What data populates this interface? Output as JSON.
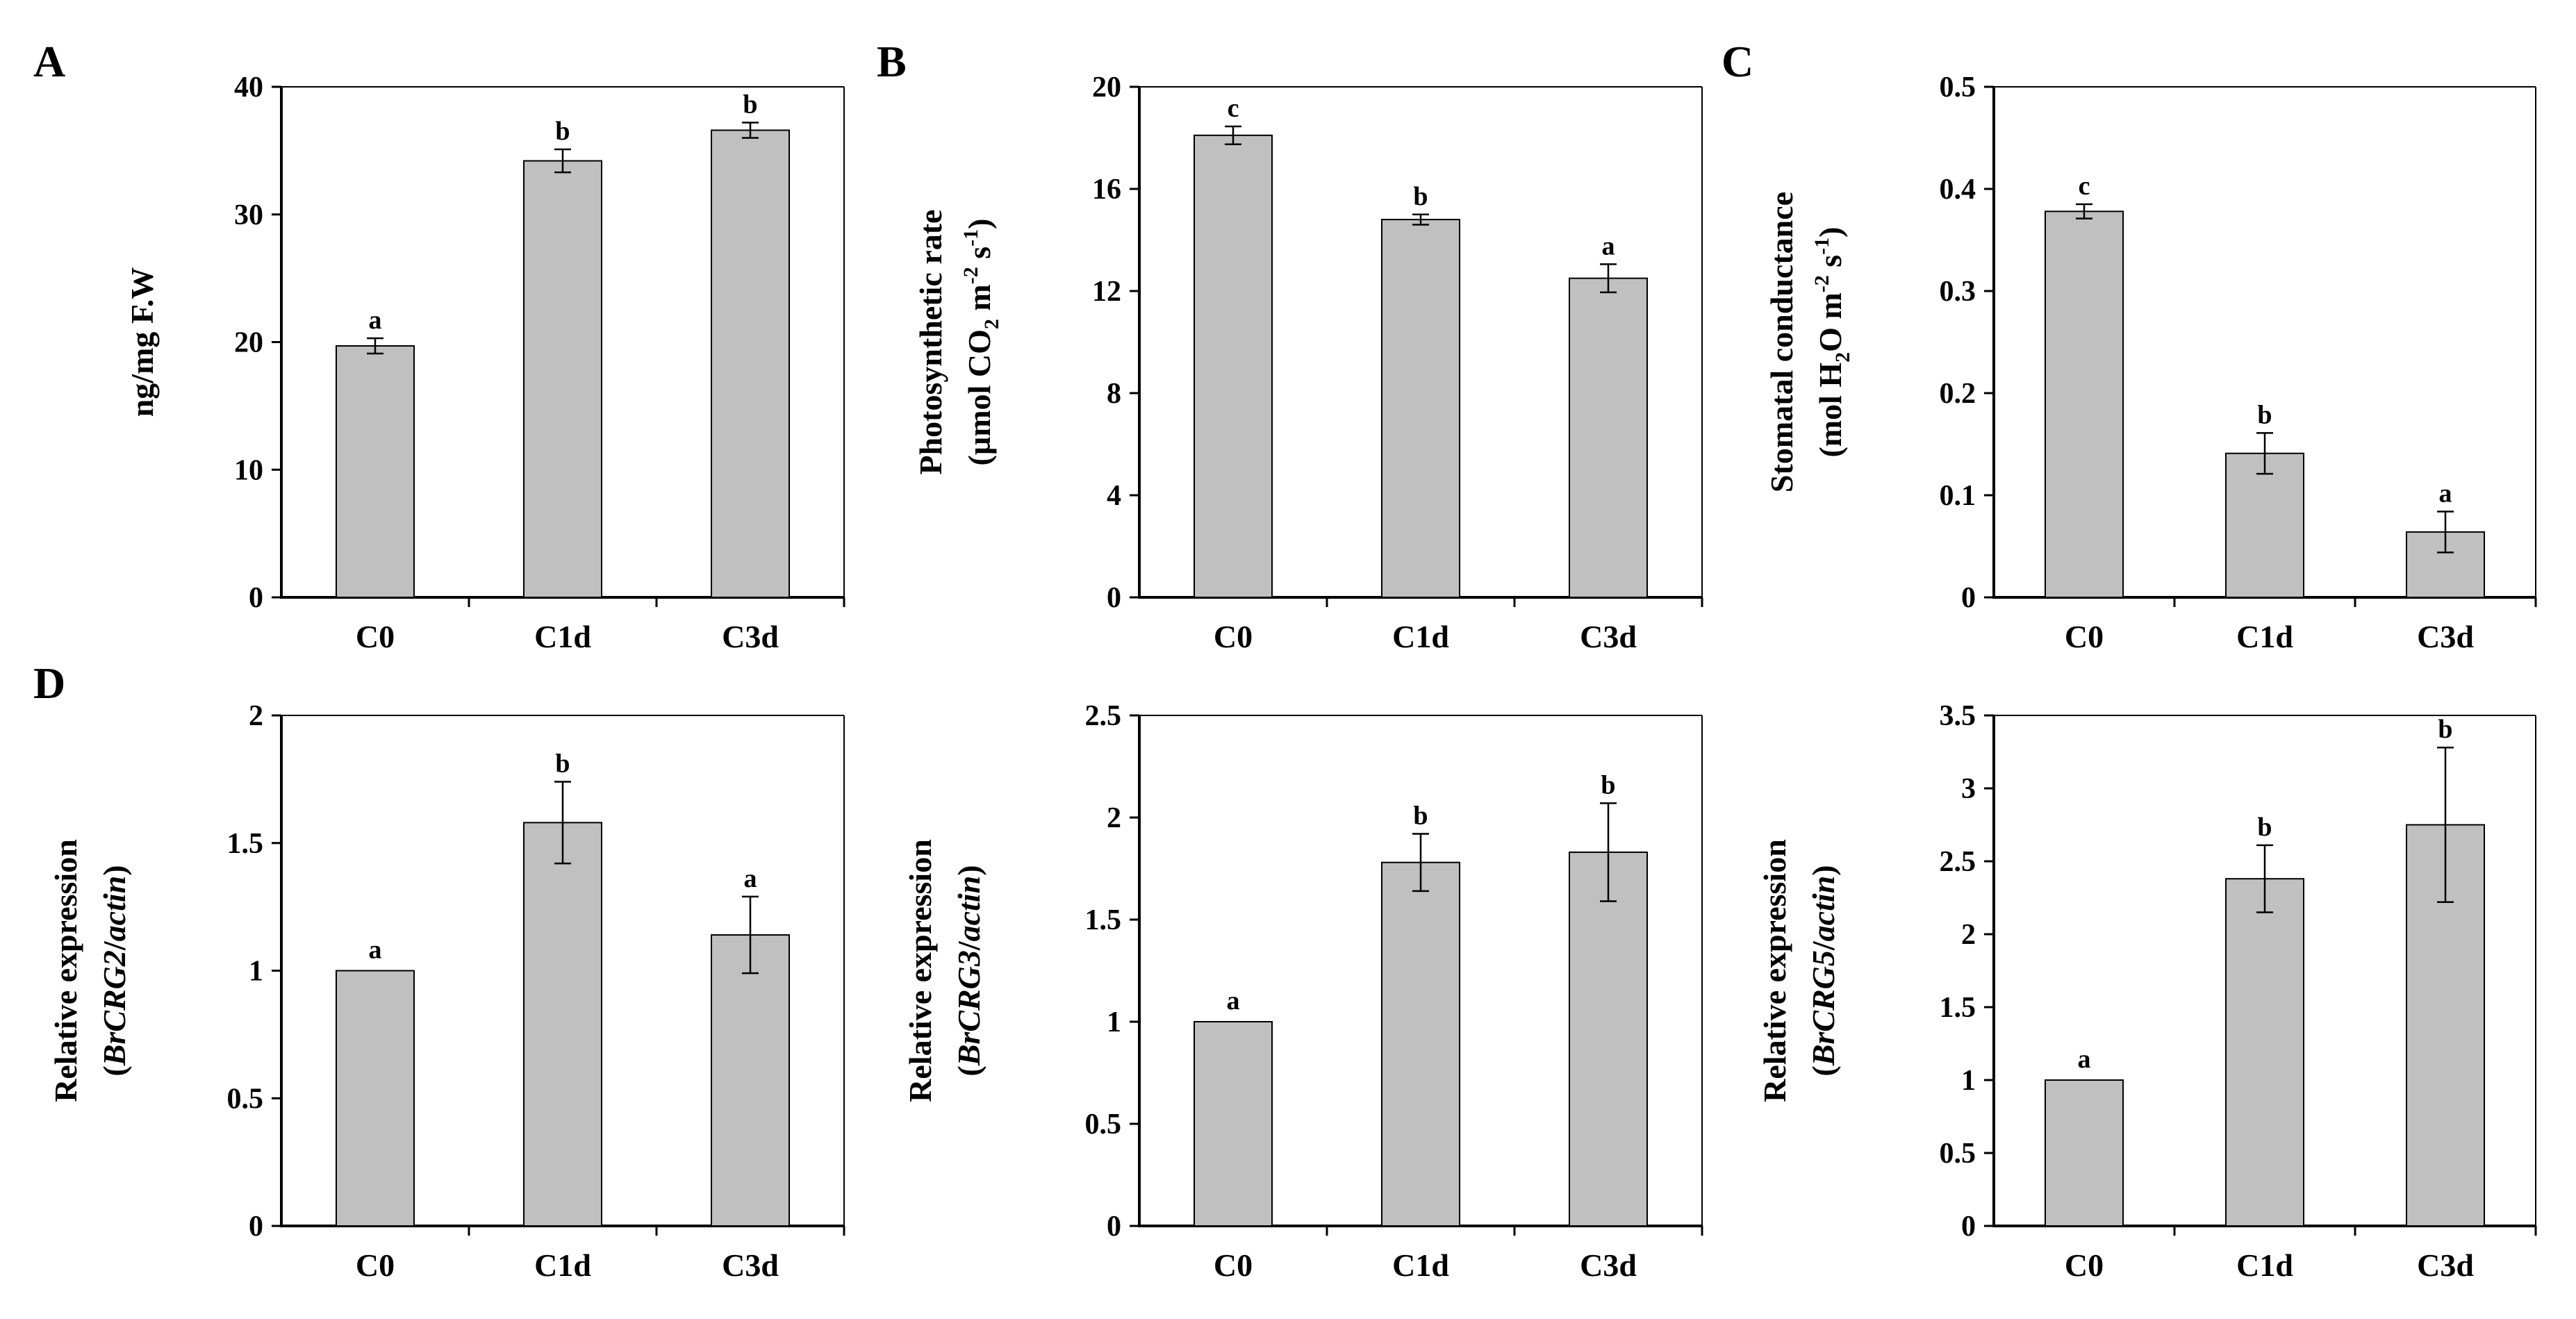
{
  "figure": {
    "style": {
      "bar_color": "#c0c0c0",
      "bar_edge_color": "#000000",
      "axis_color": "#000000",
      "background": "#ffffff"
    }
  },
  "chart_data": [
    {
      "panel": "A",
      "panel_label": "A",
      "type": "bar",
      "title": "",
      "ylabel_lines": [
        [
          {
            "t": "ng/mg F.W"
          }
        ]
      ],
      "xlabel": "",
      "categories": [
        "C0",
        "C1d",
        "C3d"
      ],
      "values": [
        19.7,
        34.2,
        36.6
      ],
      "errors": [
        0.6,
        0.9,
        0.6
      ],
      "significance": [
        "a",
        "b",
        "b"
      ],
      "ylim": [
        0,
        40
      ],
      "yticks": [
        0,
        10,
        20,
        30,
        40
      ],
      "ytick_labels": [
        "0",
        "10",
        "20",
        "30",
        "40"
      ]
    },
    {
      "panel": "B",
      "panel_label": "B",
      "type": "bar",
      "title": "",
      "ylabel_lines": [
        [
          {
            "t": "Photosynthetic rate"
          }
        ],
        [
          {
            "t": "(µmol CO"
          },
          {
            "t": "2",
            "sub": true
          },
          {
            "t": " m"
          },
          {
            "t": "-2",
            "sup": true
          },
          {
            "t": " s"
          },
          {
            "t": "-1",
            "sup": true
          },
          {
            "t": ")"
          }
        ]
      ],
      "xlabel": "",
      "categories": [
        "C0",
        "C1d",
        "C3d"
      ],
      "values": [
        18.1,
        14.8,
        12.5
      ],
      "errors": [
        0.35,
        0.2,
        0.55
      ],
      "significance": [
        "c",
        "b",
        "a"
      ],
      "ylim": [
        0,
        20
      ],
      "yticks": [
        0,
        4,
        8,
        12,
        16,
        20
      ],
      "ytick_labels": [
        "0",
        "4",
        "8",
        "12",
        "16",
        "20"
      ]
    },
    {
      "panel": "C",
      "panel_label": "C",
      "type": "bar",
      "title": "",
      "ylabel_lines": [
        [
          {
            "t": "Stomatal conductance"
          }
        ],
        [
          {
            "t": "(mol H"
          },
          {
            "t": "2",
            "sub": true
          },
          {
            "t": "O m"
          },
          {
            "t": "-2",
            "sup": true
          },
          {
            "t": " s"
          },
          {
            "t": "-1",
            "sup": true
          },
          {
            "t": ")"
          }
        ]
      ],
      "xlabel": "",
      "categories": [
        "C0",
        "C1d",
        "C3d"
      ],
      "values": [
        0.378,
        0.141,
        0.064
      ],
      "errors": [
        0.007,
        0.02,
        0.02
      ],
      "significance": [
        "c",
        "b",
        "a"
      ],
      "ylim": [
        0,
        0.5
      ],
      "yticks": [
        0,
        0.1,
        0.2,
        0.3,
        0.4,
        0.5
      ],
      "ytick_labels": [
        "0",
        "0.1",
        "0.2",
        "0.3",
        "0.4",
        "0.5"
      ]
    },
    {
      "panel": "D1",
      "panel_label": "D",
      "type": "bar",
      "title": "",
      "ylabel_lines": [
        [
          {
            "t": "Relative expression"
          }
        ],
        [
          {
            "t": "("
          },
          {
            "t": "BrCRG2",
            "it": true
          },
          {
            "t": "/"
          },
          {
            "t": "actin",
            "it": true
          },
          {
            "t": ")"
          }
        ]
      ],
      "xlabel": "",
      "categories": [
        "C0",
        "C1d",
        "C3d"
      ],
      "values": [
        1.0,
        1.58,
        1.14
      ],
      "errors": [
        0.0,
        0.16,
        0.15
      ],
      "significance": [
        "a",
        "b",
        "a"
      ],
      "ylim": [
        0,
        2
      ],
      "yticks": [
        0,
        0.5,
        1,
        1.5,
        2
      ],
      "ytick_labels": [
        "0",
        "0.5",
        "1",
        "1.5",
        "2"
      ]
    },
    {
      "panel": "D2",
      "panel_label": "",
      "type": "bar",
      "title": "",
      "ylabel_lines": [
        [
          {
            "t": "Relative expression"
          }
        ],
        [
          {
            "t": "("
          },
          {
            "t": "BrCRG3",
            "it": true
          },
          {
            "t": "/"
          },
          {
            "t": "actin",
            "it": true
          },
          {
            "t": ")"
          }
        ]
      ],
      "xlabel": "",
      "categories": [
        "C0",
        "C1d",
        "C3d"
      ],
      "values": [
        1.0,
        1.78,
        1.83
      ],
      "errors": [
        0.0,
        0.14,
        0.24
      ],
      "significance": [
        "a",
        "b",
        "b"
      ],
      "ylim": [
        0,
        2.5
      ],
      "yticks": [
        0,
        0.5,
        1,
        1.5,
        2,
        2.5
      ],
      "ytick_labels": [
        "0",
        "0.5",
        "1",
        "1.5",
        "2",
        "2.5"
      ]
    },
    {
      "panel": "D3",
      "panel_label": "",
      "type": "bar",
      "title": "",
      "ylabel_lines": [
        [
          {
            "t": "Relative expression"
          }
        ],
        [
          {
            "t": "("
          },
          {
            "t": "BrCRG5",
            "it": true
          },
          {
            "t": "/"
          },
          {
            "t": "actin",
            "it": true
          },
          {
            "t": ")"
          }
        ]
      ],
      "xlabel": "",
      "categories": [
        "C0",
        "C1d",
        "C3d"
      ],
      "values": [
        1.0,
        2.38,
        2.75
      ],
      "errors": [
        0.0,
        0.23,
        0.53
      ],
      "significance": [
        "a",
        "b",
        "b"
      ],
      "ylim": [
        0,
        3.5
      ],
      "yticks": [
        0,
        0.5,
        1,
        1.5,
        2,
        2.5,
        3,
        3.5
      ],
      "ytick_labels": [
        "0",
        "0.5",
        "1",
        "1.5",
        "2",
        "2.5",
        "3",
        "3.5"
      ]
    }
  ]
}
